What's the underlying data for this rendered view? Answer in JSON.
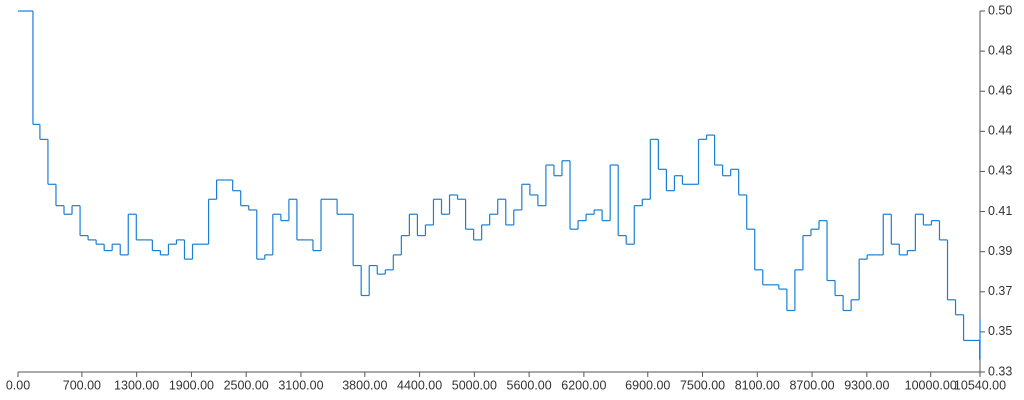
{
  "chart_data": {
    "type": "step",
    "color": "#1a7fd4",
    "xlim": [
      0,
      10540
    ],
    "xticks": [
      {
        "value": 0,
        "label": "0.00"
      },
      {
        "value": 700,
        "label": "700.00"
      },
      {
        "value": 1300,
        "label": "1300.00"
      },
      {
        "value": 1900,
        "label": "1900.00"
      },
      {
        "value": 2500,
        "label": "2500.00"
      },
      {
        "value": 3100,
        "label": "3100.00"
      },
      {
        "value": 3800,
        "label": "3800.00"
      },
      {
        "value": 4400,
        "label": "4400.00"
      },
      {
        "value": 5000,
        "label": "5000.00"
      },
      {
        "value": 5600,
        "label": "5600.00"
      },
      {
        "value": 6200,
        "label": "6200.00"
      },
      {
        "value": 6900,
        "label": "6900.00"
      },
      {
        "value": 7500,
        "label": "7500.00"
      },
      {
        "value": 8100,
        "label": "8100.00"
      },
      {
        "value": 8700,
        "label": "8700.00"
      },
      {
        "value": 9300,
        "label": "9300.00"
      },
      {
        "value": 10000,
        "label": "10000.00"
      },
      {
        "value": 10540,
        "label": "10540.00"
      }
    ],
    "ylim": [
      0.33125,
      0.5
    ],
    "yticks": [
      {
        "value": 0.5,
        "label": "0.50"
      },
      {
        "value": 0.48125,
        "label": "0.48"
      },
      {
        "value": 0.4625,
        "label": "0.46"
      },
      {
        "value": 0.44375,
        "label": "0.44"
      },
      {
        "value": 0.425,
        "label": "0.43"
      },
      {
        "value": 0.40625,
        "label": "0.41"
      },
      {
        "value": 0.3875,
        "label": "0.39"
      },
      {
        "value": 0.36875,
        "label": "0.37"
      },
      {
        "value": 0.35,
        "label": "0.35"
      },
      {
        "value": 0.33125,
        "label": "0.33"
      }
    ],
    "x": [
      0,
      164,
      240,
      328,
      416,
      504,
      592,
      680,
      768,
      856,
      944,
      1032,
      1120,
      1208,
      1296,
      1384,
      1472,
      1560,
      1648,
      1736,
      1824,
      1912,
      2000,
      2088,
      2176,
      2264,
      2352,
      2440,
      2528,
      2616,
      2704,
      2792,
      2880,
      2968,
      3056,
      3144,
      3232,
      3320,
      3408,
      3496,
      3584,
      3672,
      3760,
      3848,
      3936,
      4024,
      4112,
      4200,
      4288,
      4376,
      4464,
      4552,
      4640,
      4728,
      4816,
      4904,
      4992,
      5080,
      5168,
      5256,
      5344,
      5432,
      5520,
      5608,
      5696,
      5784,
      5872,
      5960,
      6048,
      6136,
      6224,
      6312,
      6400,
      6488,
      6576,
      6664,
      6752,
      6840,
      6928,
      7016,
      7104,
      7192,
      7280,
      7368,
      7456,
      7544,
      7632,
      7720,
      7808,
      7896,
      7984,
      8072,
      8160,
      8248,
      8336,
      8424,
      8512,
      8600,
      8688,
      8776,
      8864,
      8952,
      9040,
      9128,
      9216,
      9304,
      9392,
      9480,
      9568,
      9656,
      9744,
      9832,
      9920,
      10008,
      10096,
      10184,
      10272,
      10360,
      10448,
      10536,
      10540
    ],
    "values": [
      0.5,
      0.447,
      0.44,
      0.419,
      0.409,
      0.405,
      0.409,
      0.395,
      0.393,
      0.391,
      0.388,
      0.391,
      0.386,
      0.405,
      0.393,
      0.393,
      0.388,
      0.386,
      0.391,
      0.393,
      0.384,
      0.391,
      0.391,
      0.412,
      0.421,
      0.421,
      0.416,
      0.409,
      0.407,
      0.384,
      0.386,
      0.405,
      0.402,
      0.412,
      0.393,
      0.393,
      0.388,
      0.412,
      0.412,
      0.405,
      0.405,
      0.381,
      0.367,
      0.381,
      0.377,
      0.379,
      0.386,
      0.395,
      0.405,
      0.395,
      0.4,
      0.412,
      0.405,
      0.414,
      0.412,
      0.398,
      0.393,
      0.4,
      0.405,
      0.412,
      0.4,
      0.407,
      0.419,
      0.414,
      0.409,
      0.428,
      0.423,
      0.43,
      0.398,
      0.402,
      0.405,
      0.407,
      0.402,
      0.428,
      0.395,
      0.391,
      0.409,
      0.412,
      0.44,
      0.426,
      0.416,
      0.423,
      0.419,
      0.419,
      0.44,
      0.442,
      0.428,
      0.423,
      0.426,
      0.414,
      0.398,
      0.379,
      0.372,
      0.372,
      0.37,
      0.36,
      0.379,
      0.395,
      0.398,
      0.402,
      0.374,
      0.367,
      0.36,
      0.365,
      0.384,
      0.386,
      0.386,
      0.405,
      0.391,
      0.386,
      0.388,
      0.405,
      0.4,
      0.402,
      0.393,
      0.365,
      0.358,
      0.346,
      0.346,
      0.337,
      0.356
    ]
  }
}
